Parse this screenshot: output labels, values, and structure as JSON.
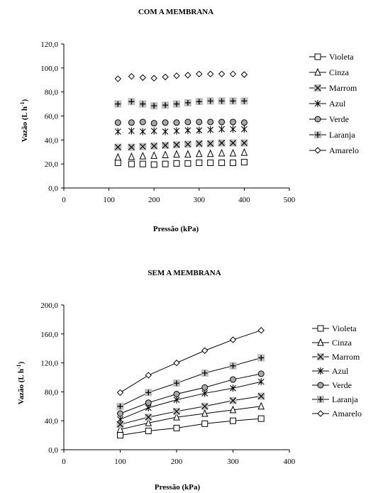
{
  "chart_data": [
    {
      "type": "scatter",
      "title": "COM A MEMBRANA",
      "xlabel": "Pressão (kPa)",
      "ylabel": "Vazão (L h",
      "ylabel_sup": "-1",
      "ylabel_close": ")",
      "xlim": [
        0,
        500
      ],
      "ylim": [
        0,
        120
      ],
      "xticks": [
        "0",
        "100",
        "200",
        "300",
        "400",
        "500"
      ],
      "yticks": [
        "0,0",
        "20,0",
        "40,0",
        "60,0",
        "80,0",
        "100,0",
        "120,0"
      ],
      "grid": false,
      "legend_position": "right",
      "x": [
        120,
        150,
        175,
        200,
        225,
        250,
        275,
        300,
        325,
        350,
        375,
        400
      ],
      "series": [
        {
          "name": "Violeta",
          "marker": "square",
          "values": [
            21,
            20,
            20,
            19.5,
            20,
            20.5,
            20.5,
            21,
            21,
            21,
            21,
            21.5
          ]
        },
        {
          "name": "Cinza",
          "marker": "triangle",
          "values": [
            25.5,
            26,
            26.5,
            27,
            27.5,
            28,
            28,
            28.5,
            28.5,
            29,
            29,
            29.5
          ]
        },
        {
          "name": "Marrom",
          "marker": "xsquare",
          "values": [
            34,
            34,
            34.5,
            35,
            35.5,
            36,
            36.5,
            37,
            37,
            37.5,
            37.5,
            37.5
          ]
        },
        {
          "name": "Azul",
          "marker": "asterisk",
          "values": [
            47,
            47.5,
            47,
            47.5,
            47,
            47.5,
            48,
            48,
            48.5,
            49,
            49,
            49
          ]
        },
        {
          "name": "Verde",
          "marker": "circle",
          "values": [
            54.5,
            54.5,
            55,
            54,
            54.5,
            54.5,
            55,
            55,
            55,
            55,
            55,
            54.5
          ]
        },
        {
          "name": "Laranja",
          "marker": "plus",
          "values": [
            70,
            72,
            70,
            68.5,
            69,
            70,
            71,
            72,
            72.5,
            72.5,
            72.5,
            72.5
          ]
        },
        {
          "name": "Amarelo",
          "marker": "diamond",
          "values": [
            91,
            93,
            92,
            91.5,
            92.5,
            93.5,
            94,
            95,
            95,
            95,
            95,
            94.5
          ]
        }
      ]
    },
    {
      "type": "line",
      "title": "SEM A MEMBRANA",
      "xlabel": "Pressão (kPa)",
      "ylabel": "Vazão (L h",
      "ylabel_sup": "-1",
      "ylabel_close": ")",
      "xlim": [
        0,
        400
      ],
      "ylim": [
        0,
        200
      ],
      "xticks": [
        "0",
        "100",
        "200",
        "300",
        "400"
      ],
      "yticks": [
        "0,0",
        "40,0",
        "80,0",
        "120,0",
        "160,0",
        "200,0"
      ],
      "grid": false,
      "legend_position": "right",
      "x": [
        100,
        150,
        200,
        250,
        300,
        350
      ],
      "series": [
        {
          "name": "Violeta",
          "marker": "square",
          "values": [
            20,
            26,
            30,
            36,
            40,
            43
          ]
        },
        {
          "name": "Cinza",
          "marker": "triangle",
          "values": [
            28,
            37,
            45,
            50,
            55,
            60
          ]
        },
        {
          "name": "Marrom",
          "marker": "xsquare",
          "values": [
            35,
            45,
            53,
            60,
            68,
            74
          ]
        },
        {
          "name": "Azul",
          "marker": "asterisk",
          "values": [
            42,
            58,
            69,
            78,
            85,
            94
          ]
        },
        {
          "name": "Verde",
          "marker": "circle",
          "values": [
            50,
            65,
            77,
            86,
            97,
            105
          ]
        },
        {
          "name": "Laranja",
          "marker": "plus",
          "values": [
            60,
            79,
            92,
            106,
            116,
            127
          ]
        },
        {
          "name": "Amarelo",
          "marker": "diamond",
          "values": [
            79,
            103,
            120,
            137,
            152,
            165
          ]
        }
      ]
    }
  ]
}
